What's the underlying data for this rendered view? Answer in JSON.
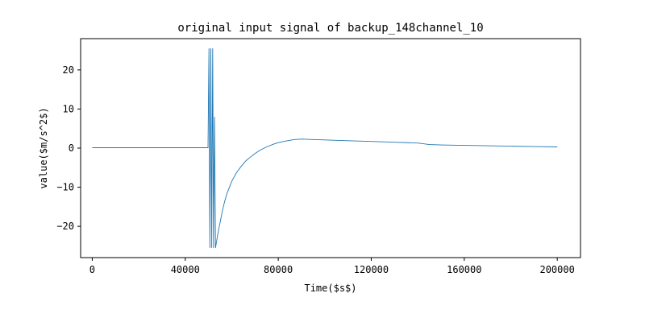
{
  "chart_data": {
    "type": "line",
    "title": "original input signal of backup_148channel_10",
    "xlabel": "Time($s$)",
    "ylabel": "value($m/s^2$)",
    "xlim": [
      -5000,
      210000
    ],
    "ylim": [
      -28,
      28
    ],
    "xticks": [
      0,
      40000,
      80000,
      120000,
      160000,
      200000
    ],
    "yticks": [
      -20,
      -10,
      0,
      10,
      20
    ],
    "grid": false,
    "legend": "none",
    "color": "#1f77b4",
    "series": [
      {
        "x": [
          0,
          10000,
          20000,
          30000,
          40000,
          49000,
          49800,
          50200,
          50600,
          51000,
          51400,
          51800,
          52200,
          52600,
          53000,
          54000,
          55000,
          56000,
          57000,
          58000,
          60000,
          62000,
          64000,
          66000,
          68000,
          70000,
          72000,
          75000,
          78000,
          80000,
          83000,
          85000,
          87000,
          90000,
          95000,
          100000,
          110000,
          120000,
          130000,
          140000,
          145000,
          150000,
          160000,
          170000,
          180000,
          190000,
          200000
        ],
        "y": [
          0.1,
          0.1,
          0.1,
          0.1,
          0.1,
          0.1,
          0.1,
          25.5,
          -25.5,
          25.5,
          -25.5,
          25.5,
          -25.5,
          8.0,
          -25.5,
          -22.0,
          -19.0,
          -16.0,
          -13.5,
          -11.5,
          -8.5,
          -6.3,
          -4.7,
          -3.3,
          -2.3,
          -1.4,
          -0.6,
          0.3,
          1.0,
          1.4,
          1.8,
          2.0,
          2.2,
          2.3,
          2.2,
          2.1,
          1.9,
          1.7,
          1.5,
          1.3,
          0.9,
          0.8,
          0.7,
          0.6,
          0.5,
          0.4,
          0.3
        ]
      }
    ]
  }
}
